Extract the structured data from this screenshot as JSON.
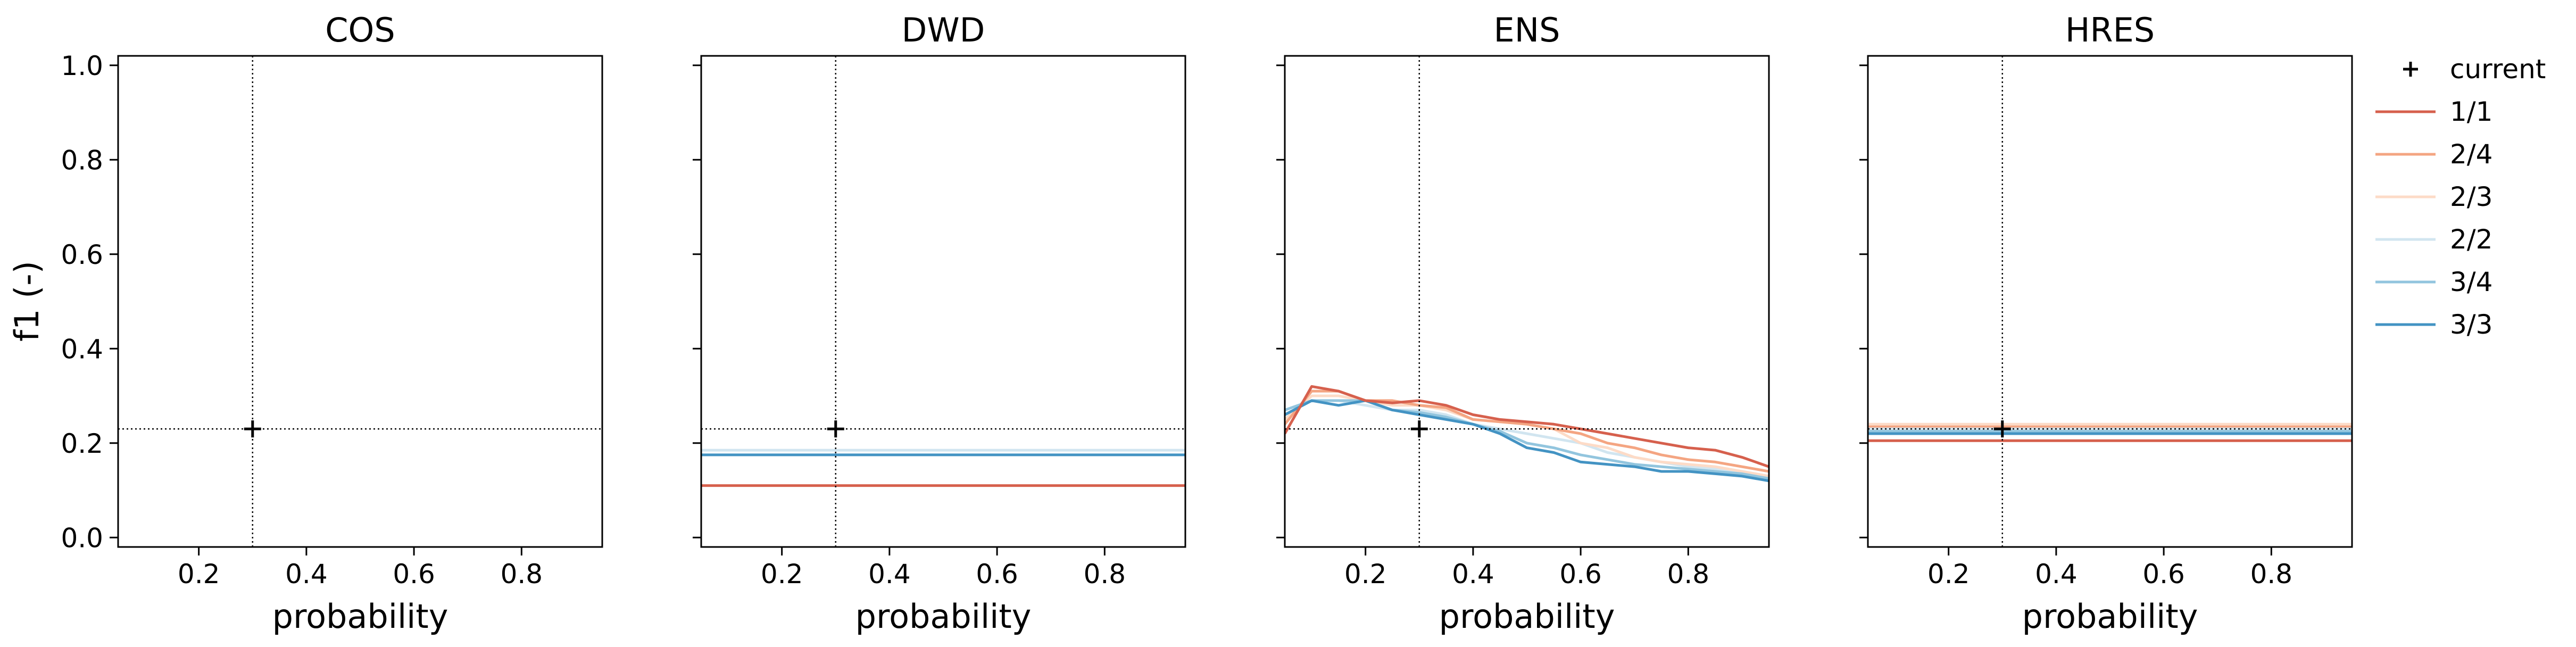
{
  "chart_data": {
    "type": "line",
    "ylabel": "f1 (-)",
    "xlabel": "probability",
    "xlim": [
      0.05,
      0.95
    ],
    "ylim": [
      -0.02,
      1.02
    ],
    "xticks": [
      0.2,
      0.4,
      0.6,
      0.8
    ],
    "xtick_labels": [
      "0.2",
      "0.4",
      "0.6",
      "0.8"
    ],
    "yticks": [
      0.0,
      0.2,
      0.4,
      0.6,
      0.8,
      1.0
    ],
    "ytick_labels": [
      "0.0",
      "0.2",
      "0.4",
      "0.6",
      "0.8",
      "1.0"
    ],
    "reference": {
      "x": 0.3,
      "y": 0.23
    },
    "legend": {
      "position": "right",
      "marker_label": "current",
      "entries": [
        {
          "label": "1/1",
          "color": "#d6604d"
        },
        {
          "label": "2/4",
          "color": "#f4a582"
        },
        {
          "label": "2/3",
          "color": "#fddbc7"
        },
        {
          "label": "2/2",
          "color": "#d1e5f0"
        },
        {
          "label": "3/4",
          "color": "#92c5de"
        },
        {
          "label": "3/3",
          "color": "#4393c3"
        }
      ]
    },
    "panels": [
      {
        "title": "COS",
        "series": []
      },
      {
        "title": "DWD",
        "series": [
          {
            "name": "2/2",
            "color": "#d1e5f0",
            "x": [
              0.05,
              0.95
            ],
            "y": [
              0.185,
              0.185
            ]
          },
          {
            "name": "3/3",
            "color": "#4393c3",
            "x": [
              0.05,
              0.95
            ],
            "y": [
              0.175,
              0.175
            ]
          },
          {
            "name": "1/1",
            "color": "#d6604d",
            "x": [
              0.05,
              0.95
            ],
            "y": [
              0.11,
              0.11
            ]
          }
        ]
      },
      {
        "title": "ENS",
        "series": [
          {
            "name": "2/2",
            "color": "#d1e5f0",
            "x": [
              0.05,
              0.1,
              0.15,
              0.2,
              0.25,
              0.3,
              0.35,
              0.4,
              0.45,
              0.5,
              0.55,
              0.6,
              0.65,
              0.7,
              0.75,
              0.8,
              0.85,
              0.9,
              0.95
            ],
            "y": [
              0.26,
              0.29,
              0.29,
              0.28,
              0.27,
              0.27,
              0.26,
              0.24,
              0.23,
              0.22,
              0.21,
              0.2,
              0.18,
              0.17,
              0.16,
              0.15,
              0.145,
              0.14,
              0.13
            ]
          },
          {
            "name": "2/3",
            "color": "#fddbc7",
            "x": [
              0.05,
              0.1,
              0.15,
              0.2,
              0.25,
              0.3,
              0.35,
              0.4,
              0.45,
              0.5,
              0.55,
              0.6,
              0.65,
              0.7,
              0.75,
              0.8,
              0.85,
              0.9,
              0.95
            ],
            "y": [
              0.25,
              0.3,
              0.3,
              0.29,
              0.28,
              0.28,
              0.27,
              0.25,
              0.245,
              0.24,
              0.23,
              0.2,
              0.19,
              0.17,
              0.16,
              0.155,
              0.15,
              0.14,
              0.13
            ]
          },
          {
            "name": "2/4",
            "color": "#f4a582",
            "x": [
              0.05,
              0.1,
              0.15,
              0.2,
              0.25,
              0.3,
              0.35,
              0.4,
              0.45,
              0.5,
              0.55,
              0.6,
              0.65,
              0.7,
              0.75,
              0.8,
              0.85,
              0.9,
              0.95
            ],
            "y": [
              0.24,
              0.31,
              0.31,
              0.29,
              0.29,
              0.28,
              0.275,
              0.25,
              0.245,
              0.24,
              0.23,
              0.22,
              0.2,
              0.19,
              0.175,
              0.165,
              0.16,
              0.15,
              0.14
            ]
          },
          {
            "name": "3/4",
            "color": "#92c5de",
            "x": [
              0.05,
              0.1,
              0.15,
              0.2,
              0.25,
              0.3,
              0.35,
              0.4,
              0.45,
              0.5,
              0.55,
              0.6,
              0.65,
              0.7,
              0.75,
              0.8,
              0.85,
              0.9,
              0.95
            ],
            "y": [
              0.27,
              0.29,
              0.29,
              0.29,
              0.27,
              0.265,
              0.255,
              0.24,
              0.225,
              0.2,
              0.19,
              0.175,
              0.165,
              0.155,
              0.15,
              0.145,
              0.14,
              0.135,
              0.125
            ]
          },
          {
            "name": "3/3",
            "color": "#4393c3",
            "x": [
              0.05,
              0.1,
              0.15,
              0.2,
              0.25,
              0.3,
              0.35,
              0.4,
              0.45,
              0.5,
              0.55,
              0.6,
              0.65,
              0.7,
              0.75,
              0.8,
              0.85,
              0.9,
              0.95
            ],
            "y": [
              0.26,
              0.29,
              0.28,
              0.29,
              0.27,
              0.26,
              0.25,
              0.24,
              0.22,
              0.19,
              0.18,
              0.16,
              0.155,
              0.15,
              0.14,
              0.14,
              0.135,
              0.13,
              0.12
            ]
          },
          {
            "name": "1/1",
            "color": "#d6604d",
            "x": [
              0.05,
              0.1,
              0.15,
              0.2,
              0.25,
              0.3,
              0.35,
              0.4,
              0.45,
              0.5,
              0.55,
              0.6,
              0.65,
              0.7,
              0.75,
              0.8,
              0.85,
              0.9,
              0.95
            ],
            "y": [
              0.22,
              0.32,
              0.31,
              0.29,
              0.285,
              0.29,
              0.28,
              0.26,
              0.25,
              0.245,
              0.24,
              0.23,
              0.22,
              0.21,
              0.2,
              0.19,
              0.185,
              0.17,
              0.15
            ]
          }
        ]
      },
      {
        "title": "HRES",
        "series": [
          {
            "name": "2/4",
            "color": "#f4a582",
            "x": [
              0.05,
              0.95
            ],
            "y": [
              0.235,
              0.235
            ]
          },
          {
            "name": "2/3",
            "color": "#fddbc7",
            "x": [
              0.05,
              0.95
            ],
            "y": [
              0.24,
              0.24
            ]
          },
          {
            "name": "2/2",
            "color": "#d1e5f0",
            "x": [
              0.05,
              0.95
            ],
            "y": [
              0.23,
              0.23
            ]
          },
          {
            "name": "3/4",
            "color": "#92c5de",
            "x": [
              0.05,
              0.95
            ],
            "y": [
              0.225,
              0.225
            ]
          },
          {
            "name": "3/3",
            "color": "#4393c3",
            "x": [
              0.05,
              0.95
            ],
            "y": [
              0.22,
              0.22
            ]
          },
          {
            "name": "1/1",
            "color": "#d6604d",
            "x": [
              0.05,
              0.95
            ],
            "y": [
              0.205,
              0.205
            ]
          }
        ]
      }
    ]
  }
}
